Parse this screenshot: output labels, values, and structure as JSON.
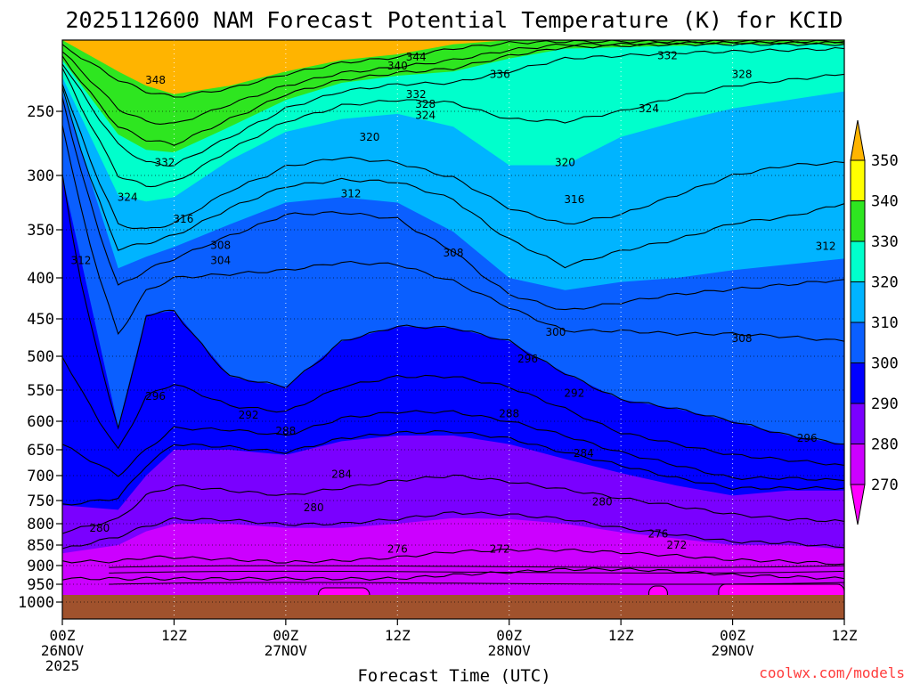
{
  "chart_data": {
    "type": "contour",
    "title": "2025112600 NAM Forecast Potential Temperature (K) for KCID",
    "xlabel": "Forecast Time (UTC)",
    "ylabel": "",
    "y_ticks": [
      250,
      300,
      350,
      400,
      450,
      500,
      550,
      600,
      650,
      700,
      750,
      800,
      850,
      900,
      950,
      1000
    ],
    "y_range_hpa": [
      200,
      1000
    ],
    "x_ticks": [
      {
        "hour": 0,
        "time": "00Z",
        "date": "26NOV",
        "year": "2025"
      },
      {
        "hour": 12,
        "time": "12Z",
        "date": "",
        "year": ""
      },
      {
        "hour": 24,
        "time": "00Z",
        "date": "27NOV",
        "year": ""
      },
      {
        "hour": 36,
        "time": "12Z",
        "date": "",
        "year": ""
      },
      {
        "hour": 48,
        "time": "00Z",
        "date": "28NOV",
        "year": ""
      },
      {
        "hour": 60,
        "time": "12Z",
        "date": "",
        "year": ""
      },
      {
        "hour": 72,
        "time": "00Z",
        "date": "29NOV",
        "year": ""
      },
      {
        "hour": 84,
        "time": "12Z",
        "date": "",
        "year": ""
      }
    ],
    "x_range_hours": [
      0,
      84
    ],
    "grid": true,
    "hours": [
      0,
      6,
      9,
      12,
      18,
      24,
      30,
      36,
      42,
      48,
      54,
      60,
      66,
      72,
      78,
      84
    ],
    "fill_isotherms": [
      {
        "value": 340,
        "p": [
          200,
          222,
          232,
          238,
          232,
          222,
          214,
          210,
          203,
          200,
          200,
          200,
          200,
          200,
          200,
          200
        ]
      },
      {
        "value": 330,
        "p": [
          214,
          268,
          280,
          282,
          262,
          242,
          230,
          225,
          222,
          213,
          206,
          205,
          204,
          203,
          203,
          203
        ]
      },
      {
        "value": 320,
        "p": [
          226,
          318,
          324,
          320,
          288,
          266,
          256,
          252,
          262,
          292,
          292,
          270,
          258,
          248,
          242,
          236
        ]
      },
      {
        "value": 310,
        "p": [
          236,
          390,
          378,
          368,
          345,
          325,
          320,
          325,
          352,
          400,
          415,
          405,
          400,
          392,
          386,
          380
        ]
      },
      {
        "value": 300,
        "p": [
          300,
          610,
          445,
          440,
          530,
          545,
          480,
          460,
          462,
          480,
          525,
          565,
          580,
          600,
          625,
          640
        ]
      },
      {
        "value": 290,
        "p": [
          760,
          770,
          700,
          650,
          650,
          660,
          635,
          625,
          625,
          640,
          668,
          695,
          720,
          740,
          730,
          730
        ]
      },
      {
        "value": 280,
        "p": [
          870,
          850,
          818,
          800,
          800,
          810,
          810,
          800,
          788,
          790,
          800,
          820,
          835,
          850,
          850,
          860
        ]
      },
      {
        "value": 270,
        "p": [
          1000,
          1000,
          1000,
          1000,
          1000,
          1000,
          1000,
          1000,
          1000,
          1000,
          1000,
          1000,
          1000,
          1000,
          1000,
          1000
        ]
      }
    ],
    "contour_lines": [
      {
        "value": 344,
        "p": [
          204,
          228,
          236,
          240,
          234,
          224,
          216,
          212,
          206,
          202,
          201,
          201,
          201,
          201,
          201,
          201
        ]
      },
      {
        "value": 336,
        "p": [
          208,
          248,
          258,
          260,
          245,
          232,
          223,
          219,
          214,
          207,
          203,
          203,
          202,
          202,
          202,
          202
        ]
      },
      {
        "value": 332,
        "p": [
          212,
          262,
          272,
          276,
          256,
          238,
          228,
          223,
          220,
          211,
          205,
          204,
          203,
          203,
          203,
          203
        ]
      },
      {
        "value": 328,
        "p": [
          216,
          276,
          290,
          292,
          270,
          248,
          236,
          231,
          230,
          222,
          213,
          211,
          209,
          208,
          207,
          206
        ]
      },
      {
        "value": 324,
        "p": [
          220,
          300,
          310,
          306,
          280,
          258,
          246,
          242,
          244,
          256,
          258,
          250,
          240,
          232,
          228,
          224
        ]
      },
      {
        "value": 316,
        "p": [
          230,
          345,
          350,
          344,
          314,
          293,
          286,
          290,
          302,
          330,
          345,
          336,
          318,
          300,
          292,
          290
        ]
      },
      {
        "value": 312,
        "p": [
          234,
          370,
          364,
          356,
          330,
          310,
          304,
          306,
          322,
          360,
          388,
          372,
          360,
          344,
          338,
          326
        ]
      },
      {
        "value": 308,
        "p": [
          240,
          410,
          392,
          380,
          356,
          336,
          334,
          340,
          372,
          420,
          440,
          430,
          420,
          414,
          408,
          402
        ]
      },
      {
        "value": 304,
        "p": [
          260,
          470,
          416,
          400,
          396,
          392,
          384,
          386,
          404,
          436,
          466,
          466,
          470,
          470,
          474,
          480
        ]
      },
      {
        "value": 300,
        "p": [
          300,
          610,
          445,
          440,
          530,
          545,
          480,
          460,
          462,
          480,
          525,
          565,
          580,
          600,
          625,
          640
        ]
      },
      {
        "value": 296,
        "p": [
          500,
          650,
          560,
          540,
          575,
          585,
          545,
          530,
          530,
          545,
          580,
          620,
          640,
          660,
          670,
          680
        ]
      },
      {
        "value": 292,
        "p": [
          640,
          700,
          650,
          612,
          615,
          625,
          595,
          585,
          585,
          600,
          625,
          655,
          680,
          705,
          705,
          710
        ]
      },
      {
        "value": 288,
        "p": [
          760,
          745,
          680,
          640,
          645,
          655,
          630,
          620,
          618,
          630,
          655,
          680,
          705,
          725,
          725,
          725
        ]
      },
      {
        "value": 284,
        "p": [
          820,
          790,
          740,
          720,
          730,
          740,
          725,
          710,
          700,
          712,
          728,
          745,
          762,
          780,
          790,
          795
        ]
      },
      {
        "value": 280,
        "p": [
          860,
          830,
          806,
          790,
          792,
          802,
          800,
          790,
          776,
          780,
          790,
          810,
          826,
          842,
          845,
          856
        ]
      },
      {
        "value": 276,
        "p": [
          890,
          890,
          880,
          880,
          885,
          892,
          888,
          880,
          866,
          862,
          862,
          868,
          876,
          886,
          890,
          896
        ]
      },
      {
        "value": 272,
        "p": [
          935,
          935,
          935,
          935,
          935,
          935,
          935,
          935,
          925,
          918,
          910,
          910,
          915,
          925,
          930,
          935
        ]
      }
    ],
    "contour_labels": [
      {
        "text": "344",
        "hour": 38,
        "p": 212
      },
      {
        "text": "340",
        "hour": 36,
        "p": 218
      },
      {
        "text": "348",
        "hour": 10,
        "p": 228
      },
      {
        "text": "336",
        "hour": 47,
        "p": 224
      },
      {
        "text": "332",
        "hour": 38,
        "p": 238
      },
      {
        "text": "332",
        "hour": 65,
        "p": 211
      },
      {
        "text": "328",
        "hour": 39,
        "p": 245
      },
      {
        "text": "328",
        "hour": 73,
        "p": 224
      },
      {
        "text": "324",
        "hour": 39,
        "p": 253
      },
      {
        "text": "324",
        "hour": 63,
        "p": 248
      },
      {
        "text": "320",
        "hour": 33,
        "p": 270
      },
      {
        "text": "320",
        "hour": 54,
        "p": 290
      },
      {
        "text": "332",
        "hour": 11,
        "p": 290
      },
      {
        "text": "324",
        "hour": 7,
        "p": 320
      },
      {
        "text": "316",
        "hour": 13,
        "p": 340
      },
      {
        "text": "312",
        "hour": 31,
        "p": 317
      },
      {
        "text": "316",
        "hour": 55,
        "p": 322
      },
      {
        "text": "308",
        "hour": 17,
        "p": 366
      },
      {
        "text": "304",
        "hour": 17,
        "p": 382
      },
      {
        "text": "312",
        "hour": 2,
        "p": 382
      },
      {
        "text": "308",
        "hour": 42,
        "p": 374
      },
      {
        "text": "312",
        "hour": 82,
        "p": 367
      },
      {
        "text": "300",
        "hour": 53,
        "p": 468
      },
      {
        "text": "308",
        "hour": 73,
        "p": 476
      },
      {
        "text": "296",
        "hour": 50,
        "p": 504
      },
      {
        "text": "296",
        "hour": 10,
        "p": 560
      },
      {
        "text": "292",
        "hour": 55,
        "p": 555
      },
      {
        "text": "292",
        "hour": 20,
        "p": 590
      },
      {
        "text": "288",
        "hour": 48,
        "p": 588
      },
      {
        "text": "288",
        "hour": 24,
        "p": 617
      },
      {
        "text": "296",
        "hour": 80,
        "p": 630
      },
      {
        "text": "284",
        "hour": 56,
        "p": 657
      },
      {
        "text": "284",
        "hour": 30,
        "p": 697
      },
      {
        "text": "280",
        "hour": 58,
        "p": 753
      },
      {
        "text": "280",
        "hour": 27,
        "p": 765
      },
      {
        "text": "280",
        "hour": 4,
        "p": 810
      },
      {
        "text": "276",
        "hour": 64,
        "p": 824
      },
      {
        "text": "276",
        "hour": 36,
        "p": 860
      },
      {
        "text": "272",
        "hour": 47,
        "p": 860
      },
      {
        "text": "272",
        "hour": 66,
        "p": 850
      }
    ],
    "colorbar": {
      "levels": [
        270,
        280,
        290,
        300,
        310,
        320,
        330,
        340,
        350
      ],
      "colors": [
        "#ff00ff",
        "#cc00ff",
        "#7a00ff",
        "#0000ff",
        "#0a5fff",
        "#00b4ff",
        "#00ffcc",
        "#2ee620",
        "#ffff00",
        "#ffb400"
      ]
    },
    "ground_color": "#a0522d",
    "pocket_color": "#ff00ff",
    "pockets": [
      {
        "hours": [
          27.5,
          33
        ],
        "p_top": 960
      },
      {
        "hours": [
          63,
          65
        ],
        "p_top": 955
      },
      {
        "hours": [
          70.5,
          84
        ],
        "p_top": 950
      }
    ],
    "credit": "coolwx.com/models"
  }
}
